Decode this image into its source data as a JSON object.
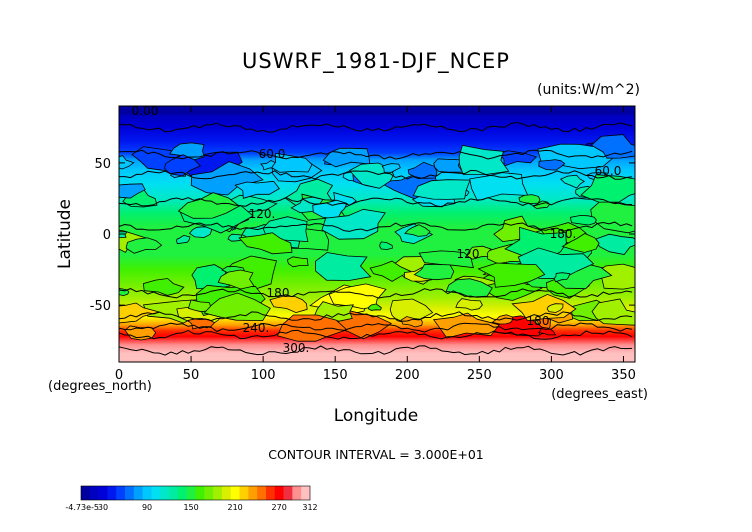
{
  "chart_data": {
    "type": "heatmap",
    "title": "USWRF_1981-DJF_NCEP",
    "units_label": "(units:W/m^2)",
    "xlabel": "Longitude",
    "ylabel": "Latitude",
    "x_unit_label": "(degrees_east)",
    "y_unit_label": "(degrees_north)",
    "xlim": [
      0,
      358
    ],
    "ylim": [
      -90,
      90
    ],
    "x_ticks": [
      0,
      50,
      100,
      150,
      200,
      250,
      300,
      350
    ],
    "y_ticks": [
      50,
      0,
      -50
    ],
    "contour_interval_text": "CONTOUR INTERVAL = 3.000E+01",
    "contour_labels": [
      "0.00",
      "60.0",
      "60.0",
      "120.",
      "120",
      "180.",
      "180",
      "180",
      "240.",
      "300."
    ],
    "zonal_profile": {
      "lat": [
        90,
        85,
        83,
        75,
        65,
        57,
        52,
        45,
        35,
        25,
        15,
        5,
        -5,
        -15,
        -25,
        -35,
        -45,
        -52,
        -58,
        -64,
        -68,
        -72,
        -78,
        -84,
        -90
      ],
      "value": [
        1,
        1,
        20,
        30,
        40,
        55,
        75,
        85,
        100,
        115,
        135,
        150,
        155,
        150,
        160,
        170,
        185,
        195,
        210,
        230,
        255,
        275,
        290,
        305,
        305
      ]
    },
    "colorbar": {
      "tick_labels": [
        "-4.73e-5",
        "30",
        "90",
        "150",
        "210",
        "270",
        "312"
      ],
      "colors": [
        "#0000a0",
        "#0000c0",
        "#0000d8",
        "#0018f0",
        "#0040ff",
        "#0070ff",
        "#00a0ff",
        "#00c8ff",
        "#00e0f0",
        "#00e8c8",
        "#00eca0",
        "#00f070",
        "#20f040",
        "#40f000",
        "#70f000",
        "#a0f000",
        "#d8f000",
        "#ffff00",
        "#ffd000",
        "#ffa000",
        "#ff7000",
        "#ff3000",
        "#ff0000",
        "#f03040",
        "#ff9090",
        "#ffc0c0"
      ]
    }
  }
}
